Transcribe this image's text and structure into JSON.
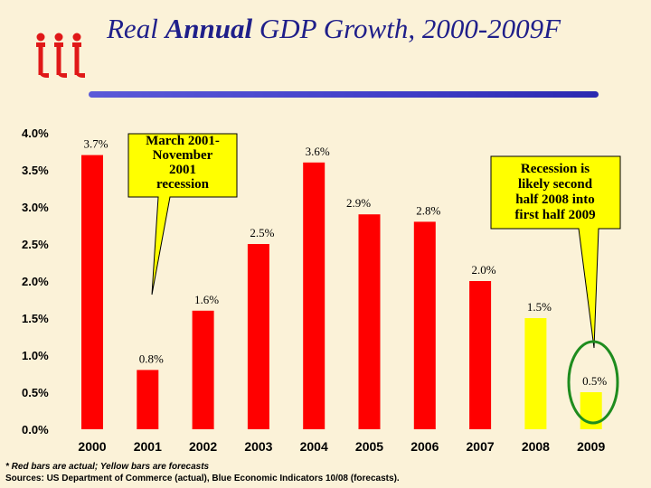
{
  "slide": {
    "title_pre": "Real ",
    "title_bold": "Annual",
    "title_post": " GDP Growth, 2000-2009F",
    "footnote": "* Red bars are actual; Yellow bars are forecasts",
    "sources": "Sources: US Department of Commerce (actual), Blue Economic Indicators 10/08 (forecasts)."
  },
  "colors": {
    "actual": "#ff0000",
    "forecast": "#ffff00",
    "title": "#1f1f8a",
    "background": "#fbf2d8",
    "highlight": "#1e8c1e"
  },
  "chart_data": {
    "type": "bar",
    "title": "Real Annual GDP Growth, 2000-2009F",
    "xlabel": "",
    "ylabel": "",
    "ylim": [
      0,
      4.0
    ],
    "yticks": [
      0.0,
      0.5,
      1.0,
      1.5,
      2.0,
      2.5,
      3.0,
      3.5,
      4.0
    ],
    "ytick_labels": [
      "0.0%",
      "0.5%",
      "1.0%",
      "1.5%",
      "2.0%",
      "2.5%",
      "3.0%",
      "3.5%",
      "4.0%"
    ],
    "categories": [
      "2000",
      "2001",
      "2002",
      "2003",
      "2004",
      "2005",
      "2006",
      "2007",
      "2008",
      "2009"
    ],
    "values": [
      3.7,
      0.8,
      1.6,
      2.5,
      3.6,
      2.9,
      2.8,
      2.0,
      1.5,
      0.5
    ],
    "labels": [
      "3.7%",
      "0.8%",
      "1.6%",
      "2.5%",
      "3.6%",
      "2.9%",
      "2.8%",
      "2.0%",
      "1.5%",
      "0.5%"
    ],
    "kinds": [
      "actual",
      "actual",
      "actual",
      "actual",
      "actual",
      "actual",
      "actual",
      "actual",
      "forecast",
      "forecast"
    ],
    "annotations": [
      {
        "lines": [
          "March 2001-",
          "November",
          "2001",
          "recession"
        ]
      },
      {
        "lines": [
          "Recession is",
          "likely second",
          "half 2008 into",
          "first half 2009"
        ]
      }
    ]
  }
}
